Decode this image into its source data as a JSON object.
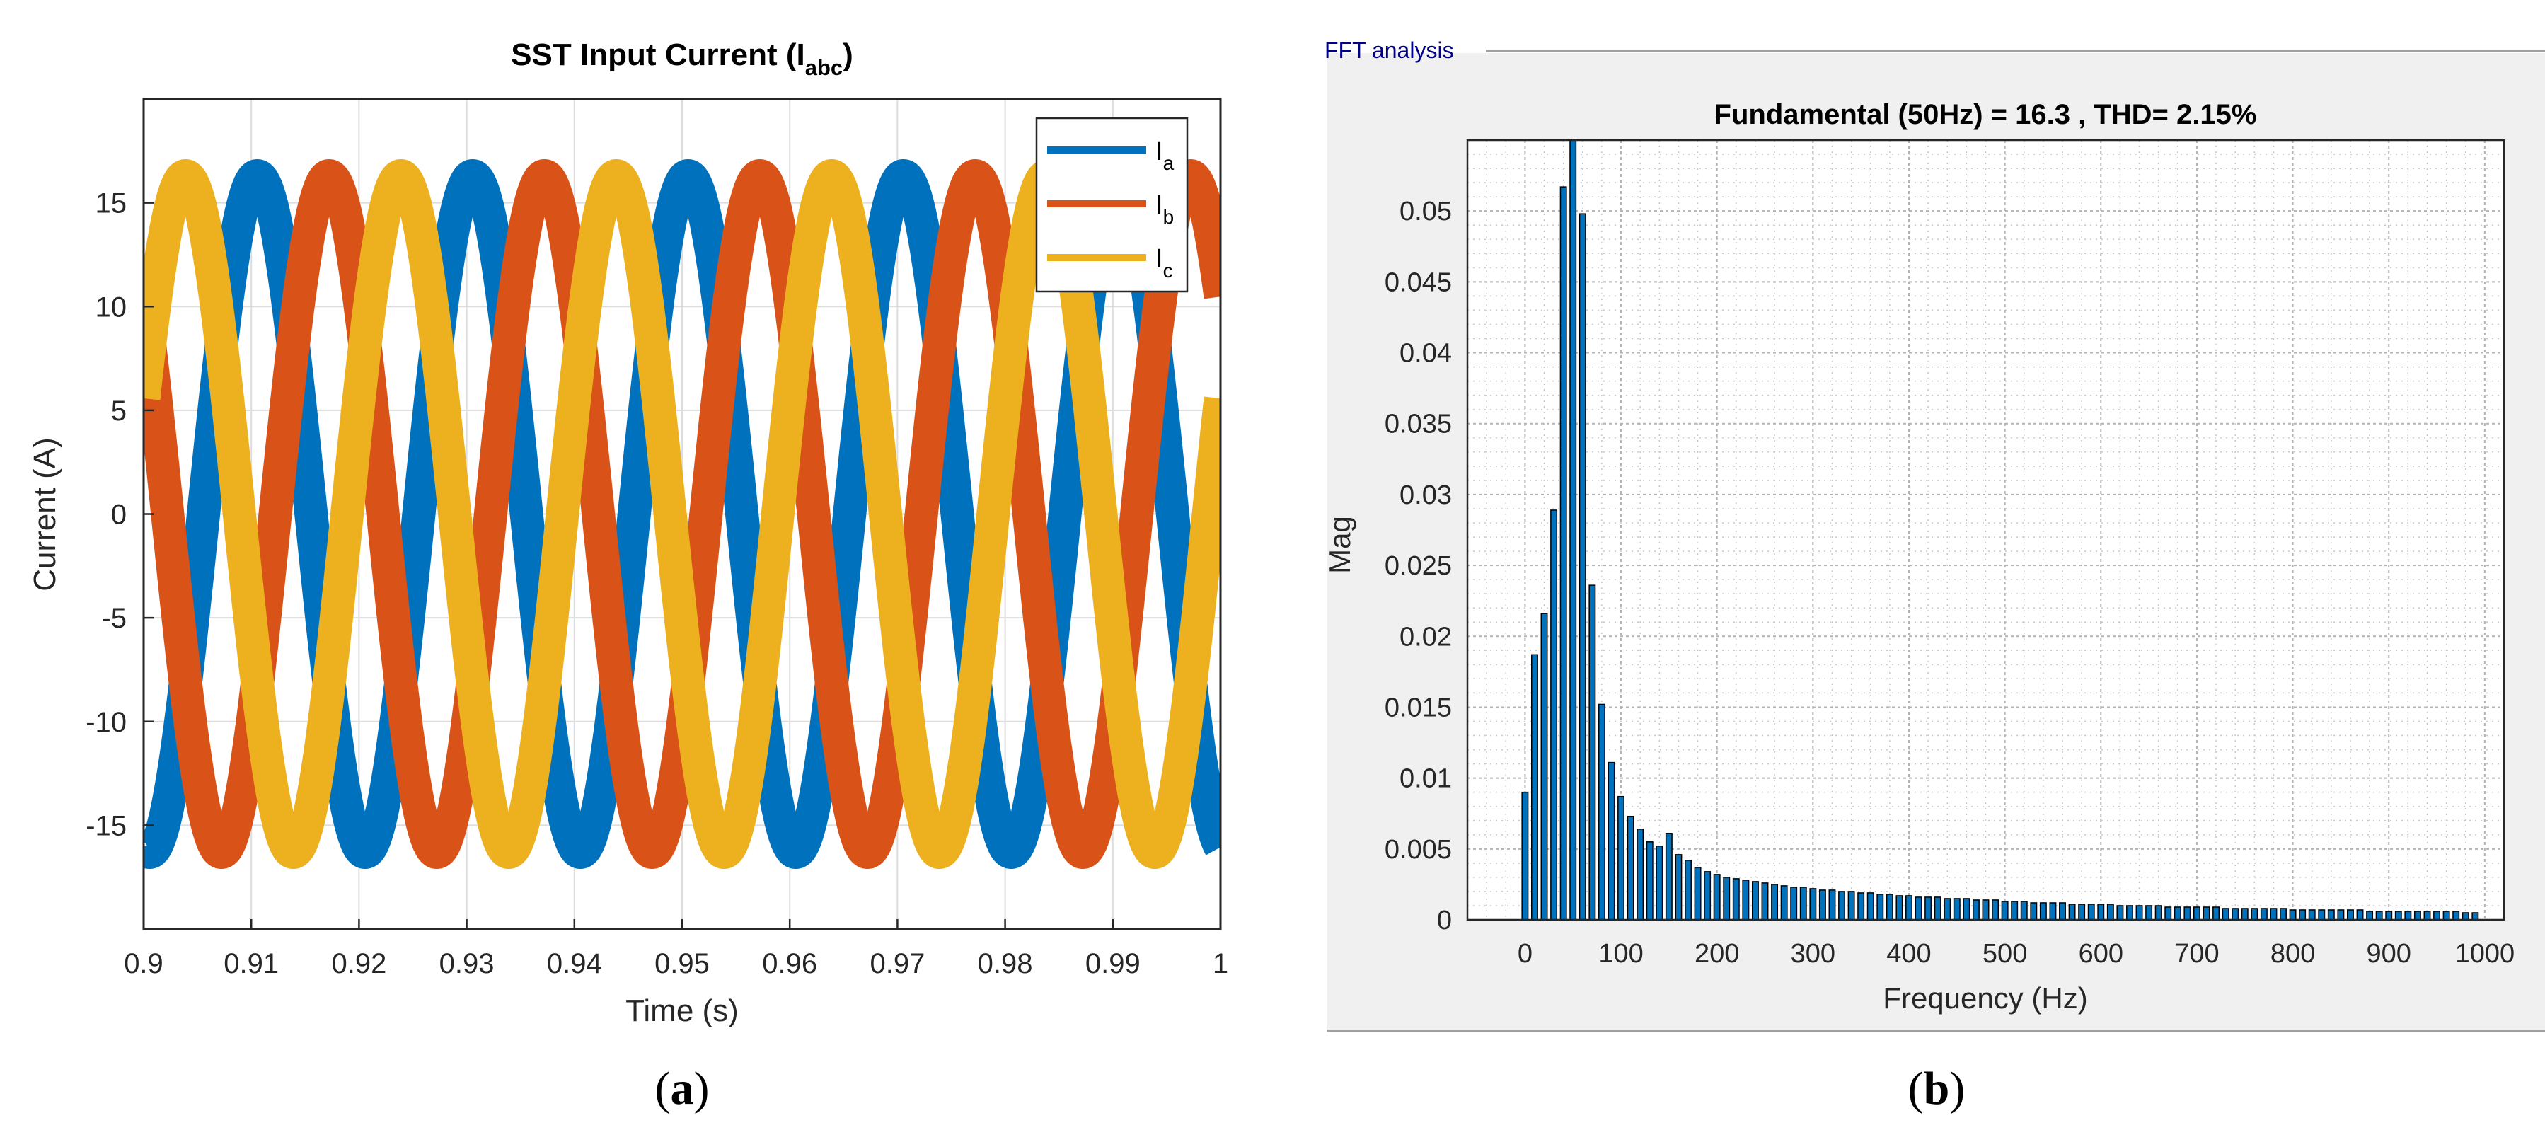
{
  "colors": {
    "ia": "#0072BD",
    "ib": "#D95319",
    "ic": "#EDB120",
    "grid": "#DDDDDD",
    "fft_bar": "#0072BD",
    "fft_panel": "#F0F0F0",
    "fft_label": "#00008B"
  },
  "panel_a": {
    "caption_open": "(",
    "caption_letter": "a",
    "caption_close": ")"
  },
  "panel_b": {
    "panel_title": "FFT analysis",
    "caption_open": "(",
    "caption_letter": "b",
    "caption_close": ")"
  },
  "chart_data": [
    {
      "type": "line",
      "title_prefix": "SST Input Current (I",
      "title_subscript": "abc",
      "title_suffix": ")",
      "xlabel": "Time (s)",
      "ylabel": "Current (A)",
      "xlim": [
        0.9,
        1.0
      ],
      "ylim": [
        -20,
        20
      ],
      "xticks": [
        0.9,
        0.91,
        0.92,
        0.93,
        0.94,
        0.95,
        0.96,
        0.97,
        0.98,
        0.99,
        1.0
      ],
      "xtick_labels": [
        "0.9",
        "0.91",
        "0.92",
        "0.93",
        "0.94",
        "0.95",
        "0.96",
        "0.97",
        "0.98",
        "0.99",
        "1"
      ],
      "yticks": [
        -15,
        -10,
        -5,
        0,
        5,
        10,
        15
      ],
      "ytick_labels": [
        "-15",
        "-10",
        "-5",
        "0",
        "5",
        "10",
        "15"
      ],
      "grid": true,
      "legend_position": "top-right",
      "frequency_hz": 50,
      "series": [
        {
          "name": "I",
          "subscript": "a",
          "amplitude": 16.3,
          "phase_deg": -100,
          "ripple_amplitude": 0.7
        },
        {
          "name": "I",
          "subscript": "b",
          "amplitude": 16.3,
          "phase_deg": 140,
          "ripple_amplitude": 0.7
        },
        {
          "name": "I",
          "subscript": "c",
          "amplitude": 16.3,
          "phase_deg": 20,
          "ripple_amplitude": 0.7
        }
      ]
    },
    {
      "type": "bar",
      "title": "Fundamental (50Hz) = 16.3 , THD= 2.15%",
      "xlabel": "Frequency (Hz)",
      "ylabel": "Mag",
      "xlim": [
        -60,
        1020
      ],
      "ylim": [
        0,
        0.055
      ],
      "xticks": [
        0,
        100,
        200,
        300,
        400,
        500,
        600,
        700,
        800,
        900,
        1000
      ],
      "xtick_labels": [
        "0",
        "100",
        "200",
        "300",
        "400",
        "500",
        "600",
        "700",
        "800",
        "900",
        "1000"
      ],
      "yticks": [
        0,
        0.005,
        0.01,
        0.015,
        0.02,
        0.025,
        0.03,
        0.035,
        0.04,
        0.045,
        0.05
      ],
      "ytick_labels": [
        "0",
        "0.005",
        "0.01",
        "0.015",
        "0.02",
        "0.025",
        "0.03",
        "0.035",
        "0.04",
        "0.045",
        "0.05"
      ],
      "grid": true,
      "bar_spacing_hz": 10,
      "frequencies": [
        0,
        10,
        20,
        30,
        40,
        50,
        60,
        70,
        80,
        90,
        100,
        110,
        120,
        130,
        140,
        150,
        160,
        170,
        180,
        190,
        200,
        210,
        220,
        230,
        240,
        250,
        260,
        270,
        280,
        290,
        300,
        310,
        320,
        330,
        340,
        350,
        360,
        370,
        380,
        390,
        400,
        410,
        420,
        430,
        440,
        450,
        460,
        470,
        480,
        490,
        500,
        510,
        520,
        530,
        540,
        550,
        560,
        570,
        580,
        590,
        600,
        610,
        620,
        630,
        640,
        650,
        660,
        670,
        680,
        690,
        700,
        710,
        720,
        730,
        740,
        750,
        760,
        770,
        780,
        790,
        800,
        810,
        820,
        830,
        840,
        850,
        860,
        870,
        880,
        890,
        900,
        910,
        920,
        930,
        940,
        950,
        960,
        970,
        980,
        990
      ],
      "values": [
        0.009,
        0.0187,
        0.0216,
        0.0289,
        0.0517,
        0.055,
        0.0498,
        0.0236,
        0.0152,
        0.0111,
        0.0087,
        0.0073,
        0.0064,
        0.0055,
        0.0052,
        0.0061,
        0.0046,
        0.0042,
        0.0037,
        0.0034,
        0.0032,
        0.003,
        0.0029,
        0.0028,
        0.0027,
        0.0026,
        0.0025,
        0.0024,
        0.0023,
        0.0023,
        0.0022,
        0.0021,
        0.0021,
        0.002,
        0.002,
        0.0019,
        0.0019,
        0.0018,
        0.0018,
        0.0017,
        0.0017,
        0.0016,
        0.0016,
        0.0016,
        0.0015,
        0.0015,
        0.0015,
        0.0014,
        0.0014,
        0.0014,
        0.0013,
        0.0013,
        0.0013,
        0.0012,
        0.0012,
        0.0012,
        0.0012,
        0.0011,
        0.0011,
        0.0011,
        0.0011,
        0.0011,
        0.001,
        0.001,
        0.001,
        0.001,
        0.001,
        0.0009,
        0.0009,
        0.0009,
        0.0009,
        0.0009,
        0.0009,
        0.0008,
        0.0008,
        0.0008,
        0.0008,
        0.0008,
        0.0008,
        0.0008,
        0.0007,
        0.0007,
        0.0007,
        0.0007,
        0.0007,
        0.0007,
        0.0007,
        0.0007,
        0.0006,
        0.0006,
        0.0006,
        0.0006,
        0.0006,
        0.0006,
        0.0006,
        0.0006,
        0.0006,
        0.0006,
        0.0005,
        0.0005
      ]
    }
  ]
}
